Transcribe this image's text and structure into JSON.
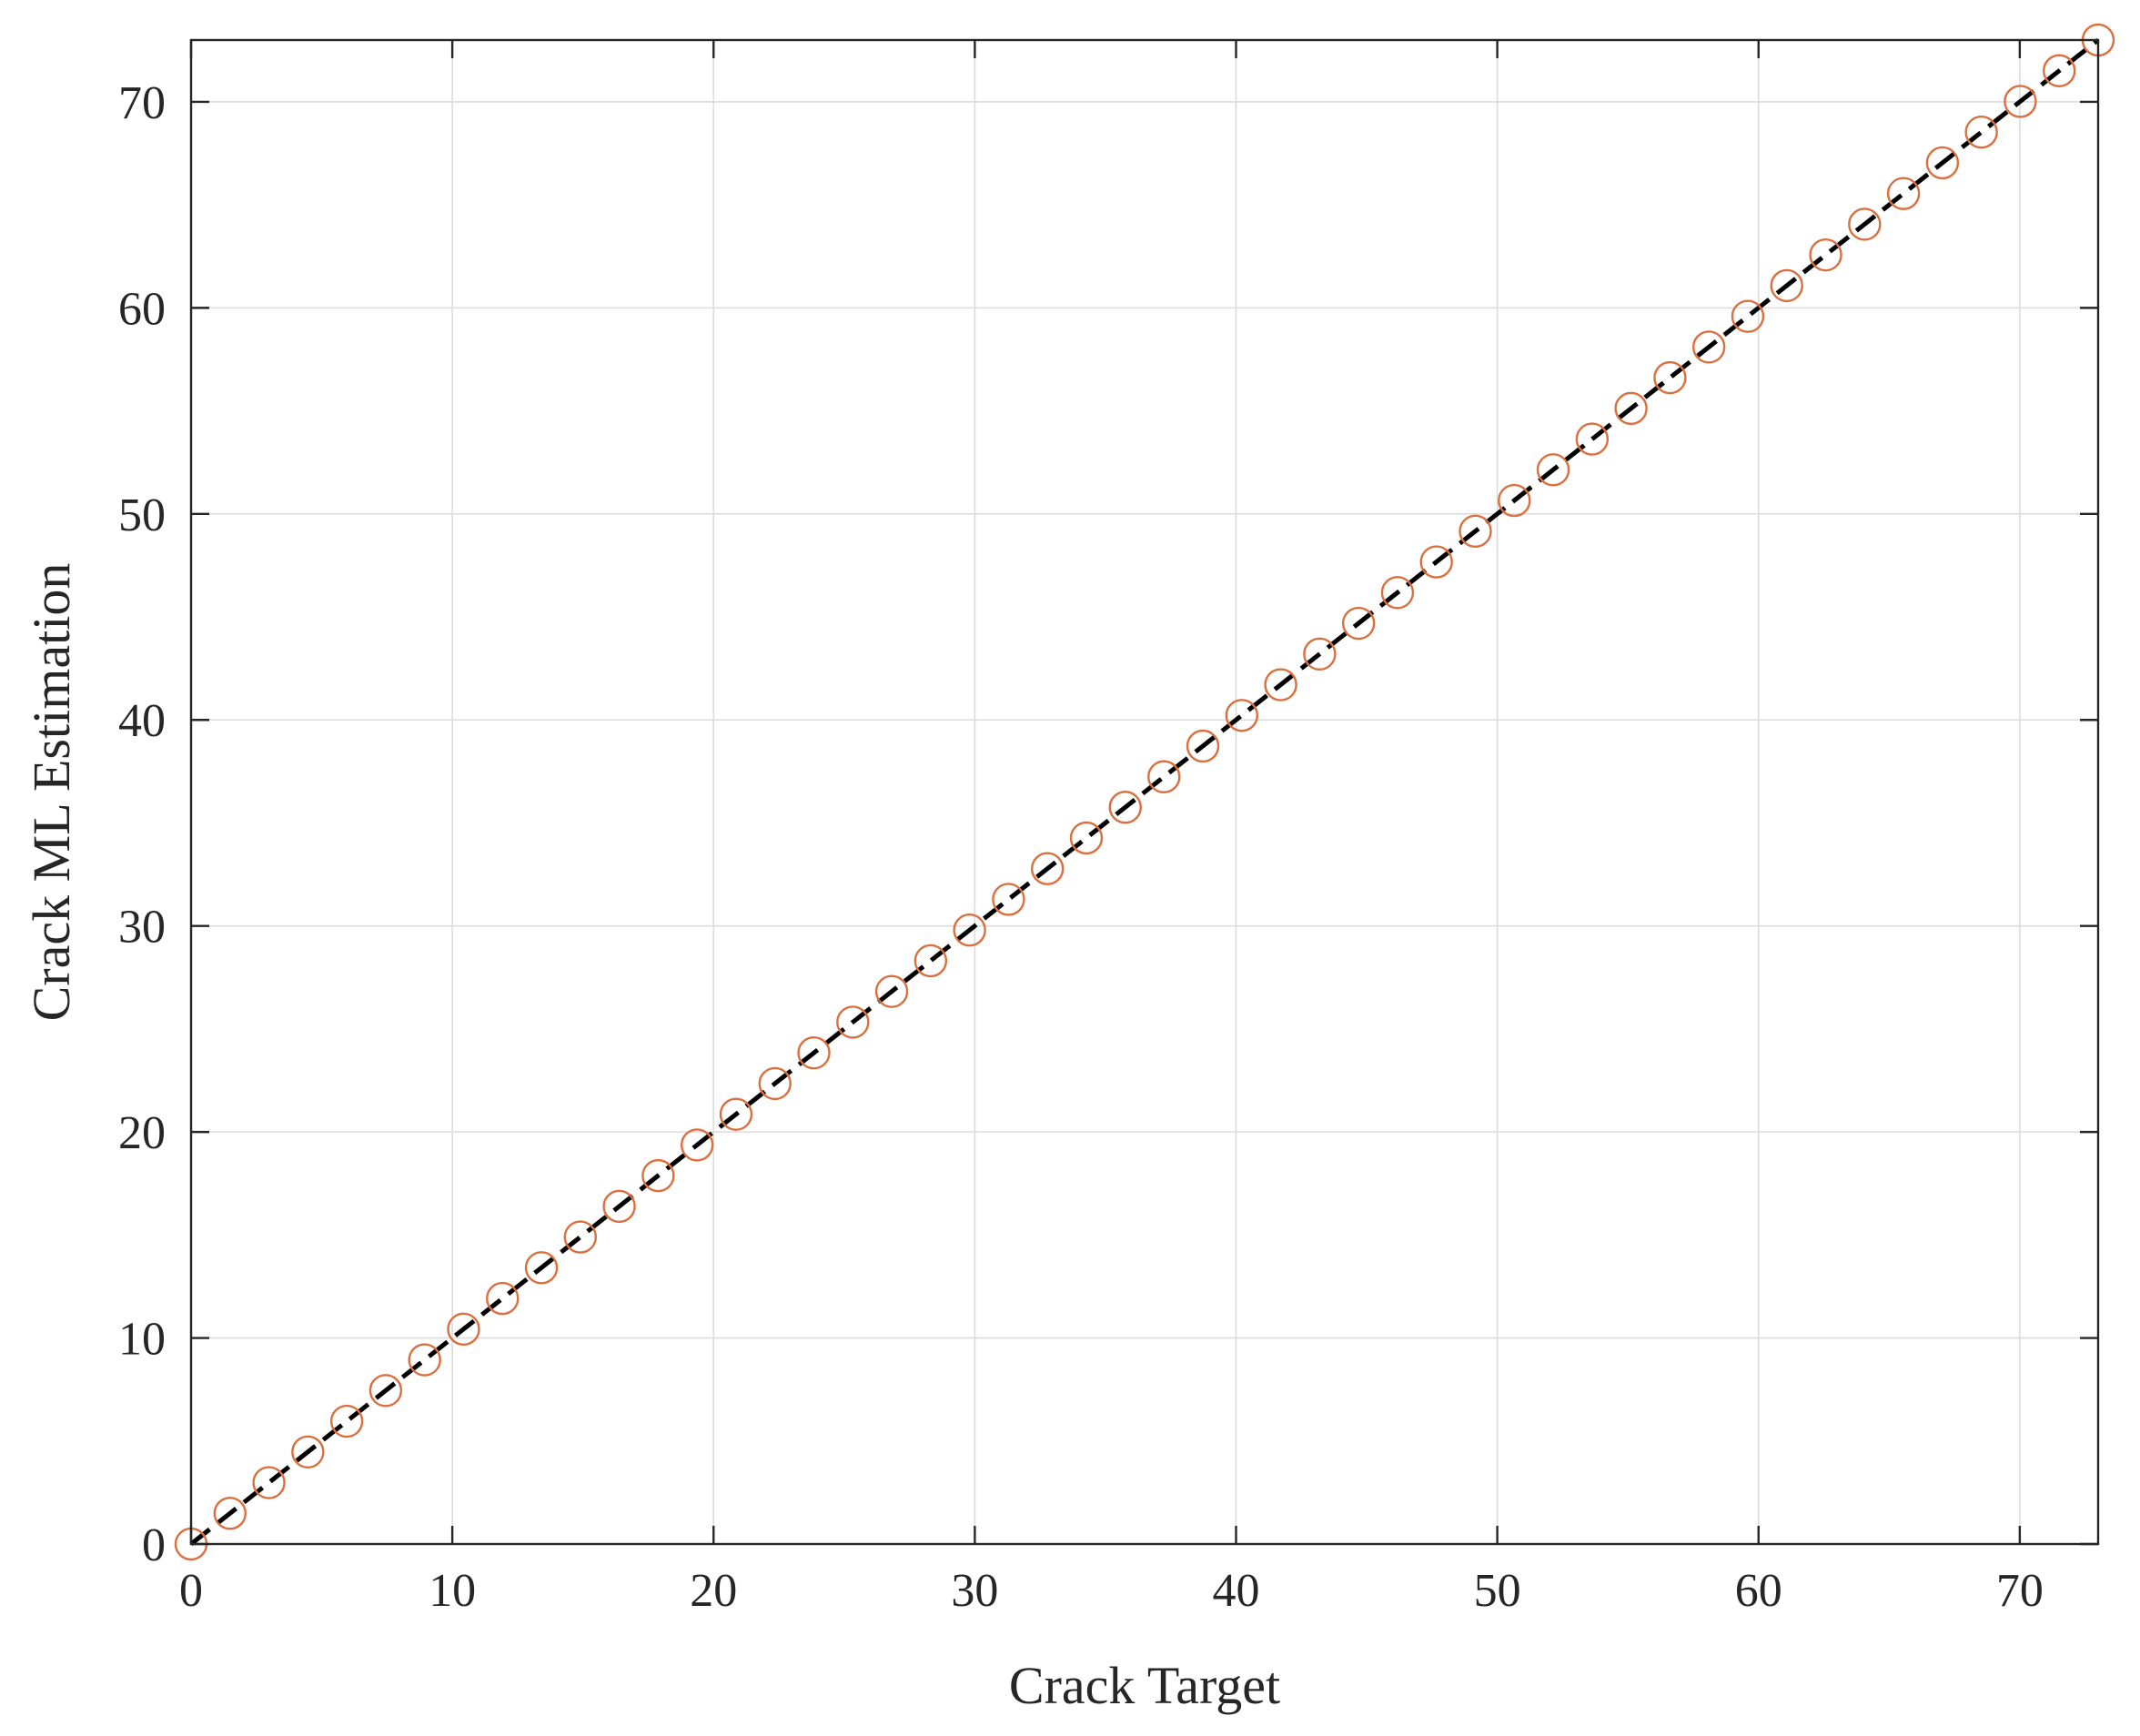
{
  "chart_data": {
    "type": "scatter",
    "xlabel": "Crack Target",
    "ylabel": "Crack ML Estimation",
    "xlim": [
      0,
      73
    ],
    "ylim": [
      0,
      73
    ],
    "xticks": [
      0,
      10,
      20,
      30,
      40,
      50,
      60,
      70
    ],
    "yticks": [
      0,
      10,
      20,
      30,
      40,
      50,
      60,
      70
    ],
    "grid": true,
    "colors": {
      "marker": "#d9703f",
      "line": "#000000",
      "grid": "#dcdcdc",
      "axes": "#262626"
    },
    "series": [
      {
        "style": "circle-markers",
        "x": [
          0,
          1.49,
          2.98,
          4.47,
          5.96,
          7.45,
          8.94,
          10.43,
          11.92,
          13.41,
          14.9,
          16.39,
          17.88,
          19.37,
          20.86,
          22.35,
          23.84,
          25.33,
          26.82,
          28.31,
          29.8,
          31.29,
          32.78,
          34.27,
          35.76,
          37.24,
          38.73,
          40.22,
          41.71,
          43.2,
          44.69,
          46.18,
          47.67,
          49.16,
          50.65,
          52.14,
          53.63,
          55.12,
          56.61,
          58.1,
          59.59,
          61.08,
          62.57,
          64.06,
          65.55,
          67.04,
          68.53,
          70.02,
          71.51,
          73
        ],
        "y": [
          0,
          1.49,
          2.98,
          4.47,
          5.96,
          7.45,
          8.94,
          10.43,
          11.92,
          13.41,
          14.9,
          16.39,
          17.88,
          19.37,
          20.86,
          22.35,
          23.84,
          25.33,
          26.82,
          28.31,
          29.8,
          31.29,
          32.78,
          34.27,
          35.76,
          37.24,
          38.73,
          40.22,
          41.71,
          43.2,
          44.69,
          46.18,
          47.67,
          49.16,
          50.65,
          52.14,
          53.63,
          55.12,
          56.61,
          58.1,
          59.59,
          61.08,
          62.57,
          64.06,
          65.55,
          67.04,
          68.53,
          70.02,
          71.51,
          73
        ]
      },
      {
        "style": "dashed-line",
        "x": [
          0,
          73
        ],
        "y": [
          0,
          73
        ]
      }
    ]
  }
}
